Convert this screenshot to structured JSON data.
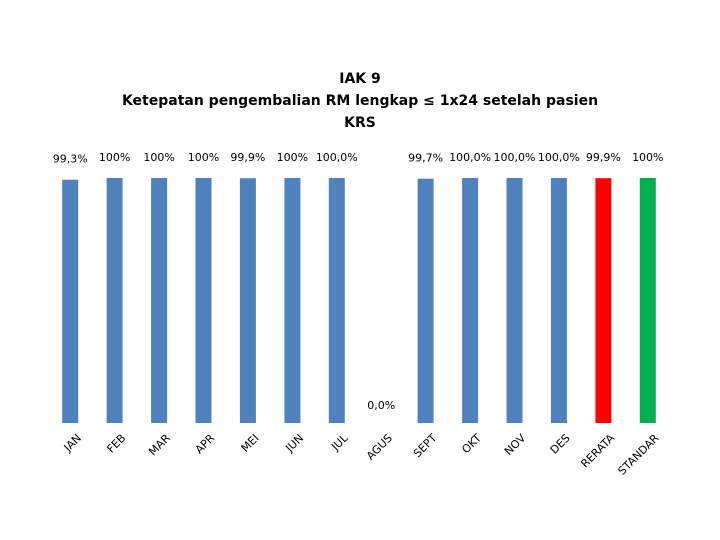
{
  "chart_data": {
    "type": "bar",
    "title_lines": [
      "IAK 9",
      "Ketepatan pengembalian RM lengkap ≤ 1x24 setelah pasien",
      "KRS"
    ],
    "categories": [
      "JAN",
      "FEB",
      "MAR",
      "APR",
      "MEI",
      "JUN",
      "JUL",
      "AGUS",
      "SEPT",
      "OKT",
      "NOV",
      "DES",
      "RERATA",
      "STANDAR"
    ],
    "values": [
      99.3,
      100,
      100,
      100,
      99.9,
      100,
      100,
      0,
      99.7,
      100,
      100,
      100,
      99.9,
      100
    ],
    "data_labels": [
      "99,3%",
      "100%",
      "100%",
      "100%",
      "99,9%",
      "100%",
      "100,0%",
      "0,0%",
      "99,7%",
      "100,0%",
      "100,0%",
      "100,0%",
      "99,9%",
      "100%"
    ],
    "colors": [
      "#4F81BD",
      "#4F81BD",
      "#4F81BD",
      "#4F81BD",
      "#4F81BD",
      "#4F81BD",
      "#4F81BD",
      "#4F81BD",
      "#4F81BD",
      "#4F81BD",
      "#4F81BD",
      "#4F81BD",
      "#FF0000",
      "#00B050"
    ],
    "ylim": [
      0,
      100
    ],
    "xlabel": "",
    "ylabel": "",
    "grid": false,
    "legend": "none"
  }
}
